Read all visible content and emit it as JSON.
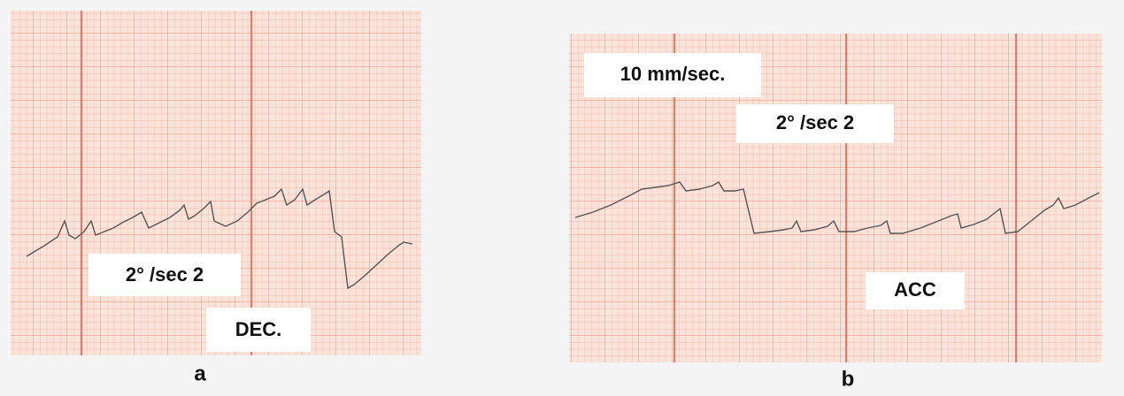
{
  "panels": [
    {
      "caption": "a",
      "labels": [
        "2° /sec 2",
        "DEC."
      ]
    },
    {
      "caption": "b",
      "labels": [
        "10 mm/sec.",
        "2° /sec 2",
        "ACC"
      ]
    }
  ]
}
